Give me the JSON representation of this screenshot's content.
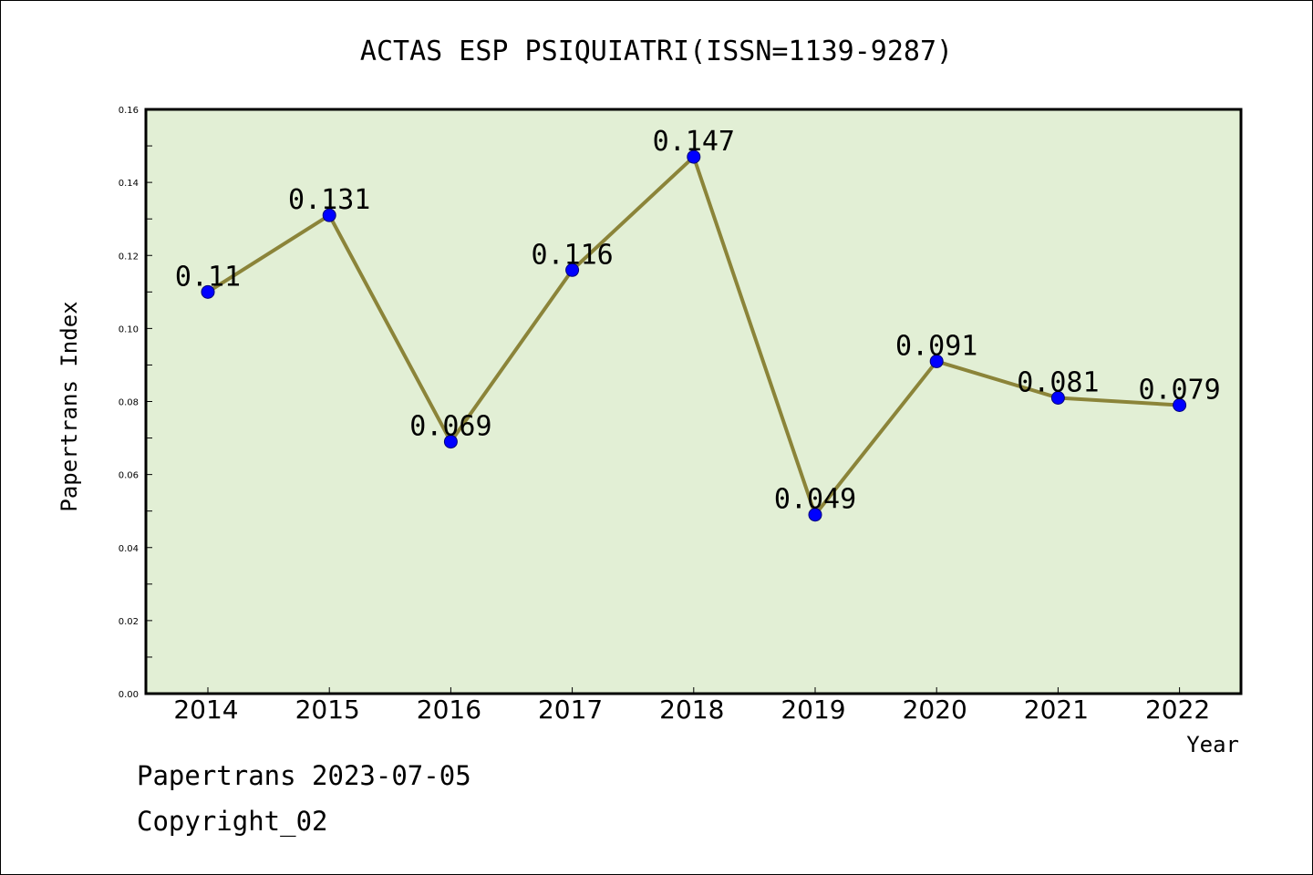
{
  "chart_data": {
    "type": "line",
    "title": "ACTAS ESP PSIQUIATRI(ISSN=1139-9287)",
    "xlabel": "Year",
    "ylabel": "Papertrans Index",
    "categories": [
      "2014",
      "2015",
      "2016",
      "2017",
      "2018",
      "2019",
      "2020",
      "2021",
      "2022"
    ],
    "series": [
      {
        "values": [
          0.11,
          0.131,
          0.069,
          0.116,
          0.147,
          0.049,
          0.091,
          0.081,
          0.079
        ],
        "data_labels": [
          "0.11",
          "0.131",
          "0.069",
          "0.116",
          "0.147",
          "0.049",
          "0.091",
          "0.081",
          "0.079"
        ]
      }
    ],
    "ylim": [
      0,
      0.16
    ],
    "yticks": [
      "0.00",
      "0.02",
      "0.04",
      "0.06",
      "0.08",
      "0.10",
      "0.12",
      "0.14",
      "0.16"
    ],
    "grid": false,
    "legend": "none",
    "colors": {
      "plot_background": "#e2efd5",
      "line": "#8b8439",
      "marker": "#0000ff",
      "frame": "#000000"
    }
  },
  "footer": {
    "stamp": "Papertrans 2023-07-05",
    "copyright": "Copyright_02"
  }
}
